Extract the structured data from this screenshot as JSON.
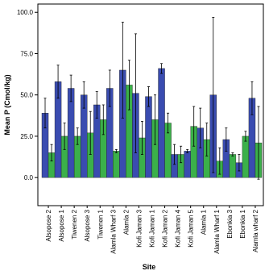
{
  "chart_data": {
    "type": "bar",
    "y_label": "Mean P (Cmol/kg)",
    "x_label": "Site",
    "categories": [
      "Alsopose 2",
      "Alsopose 1",
      "Tiwenen 2",
      "Alsopose 3",
      "Tiwenen 1",
      "Alamla Wharf 3",
      "Alamla 2",
      "Kofi Jaman 3",
      "Kofi Jaman 1",
      "Kofi Jaman 2",
      "Kofi Jaman 4",
      "Kofi Jaman 5",
      "Alamla 1",
      "Alamla Wharf 1",
      "Ebonkia 3",
      "Ebonkia 1",
      "Alamla wharf 2"
    ],
    "series": [
      {
        "color": "#3a4cb0",
        "values": [
          39,
          58,
          54,
          50,
          44,
          54,
          65,
          51,
          49,
          66,
          14,
          16,
          30,
          50,
          23,
          9,
          48
        ],
        "errors": [
          9,
          10,
          8,
          8,
          8,
          11,
          29,
          36,
          6,
          3,
          6,
          1,
          12,
          47,
          7,
          5,
          10
        ]
      },
      {
        "color": "#3bb04a",
        "values": [
          15,
          25,
          25,
          27,
          35,
          16,
          56,
          24,
          35,
          33,
          14,
          31,
          23,
          10,
          14,
          25,
          21
        ],
        "errors": [
          5,
          8,
          5,
          13,
          9,
          1,
          15,
          10,
          15,
          6,
          5,
          12,
          10,
          8,
          1,
          3,
          22
        ]
      }
    ],
    "ylim": [
      -17,
      105
    ],
    "yticks": [
      {
        "value": 0,
        "label": "0.0"
      },
      {
        "value": 25,
        "label": "25.0"
      },
      {
        "value": 50,
        "label": "50.0"
      },
      {
        "value": 75,
        "label": "75.0"
      },
      {
        "value": 100,
        "label": "100.0"
      }
    ],
    "grid": false
  }
}
